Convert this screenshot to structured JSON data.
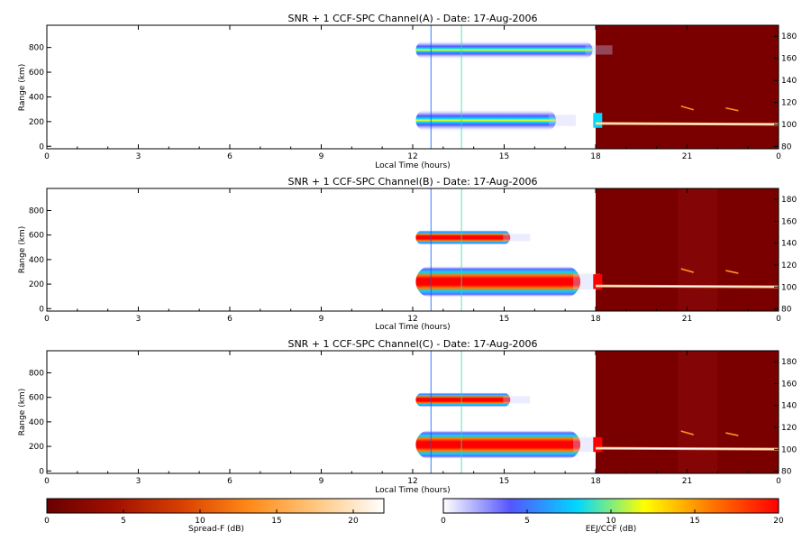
{
  "chart_data": [
    {
      "type": "heatmap",
      "title": "SNR + 1 CCF-SPC Channel(A) - Date: 17-Aug-2006",
      "xlabel": "Local Time (hours)",
      "ylabel": "Range (km)",
      "x_ticks": [
        "0",
        "3",
        "6",
        "9",
        "12",
        "15",
        "18",
        "21",
        "0"
      ],
      "y_ticks": [
        "0",
        "200",
        "400",
        "600",
        "800"
      ],
      "y2_ticks": [
        "80",
        "100",
        "120",
        "140",
        "160",
        "180"
      ],
      "xlim": [
        0,
        24
      ],
      "ylim": [
        -20,
        980
      ],
      "y2lim": [
        78,
        190
      ],
      "spreadf_echo_layers": [
        {
          "t_start": 12.1,
          "t_end": 17.9,
          "range_center": 780,
          "range_half_width": 75,
          "peak_db": 13
        },
        {
          "t_start": 12.1,
          "t_end": 16.7,
          "range_center": 210,
          "range_half_width": 90,
          "peak_db": 12
        }
      ],
      "eej_layers": [
        {
          "t_start": 18.0,
          "t_end": 24.0,
          "altitude_km": 101,
          "peak_db": 20
        },
        {
          "t_start": 20.8,
          "t_end": 22.8,
          "altitude_km": 115,
          "peak_db": 10
        }
      ],
      "vertical_lines": [
        12.6,
        13.6
      ]
    },
    {
      "type": "heatmap",
      "title": "SNR + 1 CCF-SPC Channel(B) - Date: 17-Aug-2006",
      "xlabel": "Local Time (hours)",
      "ylabel": "Range (km)",
      "x_ticks": [
        "0",
        "3",
        "6",
        "9",
        "12",
        "15",
        "18",
        "21",
        "0"
      ],
      "y_ticks": [
        "0",
        "200",
        "400",
        "600",
        "800"
      ],
      "y2_ticks": [
        "80",
        "100",
        "120",
        "140",
        "160",
        "180"
      ],
      "xlim": [
        0,
        24
      ],
      "ylim": [
        -20,
        980
      ],
      "y2lim": [
        78,
        190
      ],
      "spreadf_echo_layers": [
        {
          "t_start": 12.1,
          "t_end": 15.2,
          "range_center": 580,
          "range_half_width": 60,
          "peak_db": 20
        },
        {
          "t_start": 12.1,
          "t_end": 17.5,
          "range_center": 220,
          "range_half_width": 130,
          "peak_db": 20
        }
      ],
      "eej_layers": [
        {
          "t_start": 18.0,
          "t_end": 24.0,
          "altitude_km": 101,
          "peak_db": 20
        },
        {
          "t_start": 20.8,
          "t_end": 22.8,
          "altitude_km": 115,
          "peak_db": 10
        }
      ],
      "vertical_lines": [
        12.6,
        13.6
      ]
    },
    {
      "type": "heatmap",
      "title": "SNR + 1 CCF-SPC Channel(C) - Date: 17-Aug-2006",
      "xlabel": "Local Time (hours)",
      "ylabel": "Range (km)",
      "x_ticks": [
        "0",
        "3",
        "6",
        "9",
        "12",
        "15",
        "18",
        "21",
        "0"
      ],
      "y_ticks": [
        "0",
        "200",
        "400",
        "600",
        "800"
      ],
      "y2_ticks": [
        "80",
        "100",
        "120",
        "140",
        "160",
        "180"
      ],
      "xlim": [
        0,
        24
      ],
      "ylim": [
        -20,
        980
      ],
      "y2lim": [
        78,
        190
      ],
      "spreadf_echo_layers": [
        {
          "t_start": 12.1,
          "t_end": 15.2,
          "range_center": 580,
          "range_half_width": 60,
          "peak_db": 18
        },
        {
          "t_start": 12.1,
          "t_end": 17.5,
          "range_center": 215,
          "range_half_width": 120,
          "peak_db": 20
        }
      ],
      "eej_layers": [
        {
          "t_start": 18.0,
          "t_end": 24.0,
          "altitude_km": 101,
          "peak_db": 20
        },
        {
          "t_start": 20.8,
          "t_end": 22.8,
          "altitude_km": 115,
          "peak_db": 10
        }
      ],
      "vertical_lines": [
        12.6,
        13.6
      ]
    }
  ],
  "colorbars": [
    {
      "label": "Spread-F (dB)",
      "ticks": [
        "0",
        "5",
        "10",
        "15",
        "20"
      ],
      "range": [
        0,
        22
      ],
      "stops": [
        "#6a0000",
        "#a01000",
        "#d84000",
        "#ff8a18",
        "#ffc880",
        "#ffffff"
      ]
    },
    {
      "label": "EEJ/CCF (dB)",
      "ticks": [
        "0",
        "5",
        "10",
        "15",
        "20"
      ],
      "range": [
        0,
        20
      ],
      "stops": [
        "#ffffff",
        "#5555ff",
        "#00d8ff",
        "#ffff00",
        "#ff7700",
        "#ff0000"
      ]
    }
  ],
  "colors": {
    "night_background": "#7a0000",
    "eej_line": "#ffffff",
    "vertical_line_a": "#0060ff",
    "vertical_line_b": "#30e0a0"
  }
}
